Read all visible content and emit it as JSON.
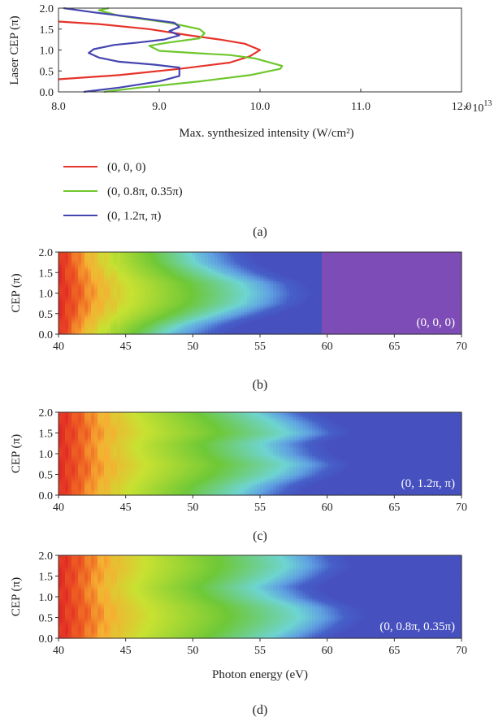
{
  "chart_data": [
    {
      "panel": "(a)",
      "type": "line",
      "xlabel": "Max. synthesized intensity (W/cm²)",
      "ylabel": "Laser CEP (π)",
      "xlim": [
        8.0,
        12.0
      ],
      "ylim": [
        0.0,
        2.0
      ],
      "x_ticks": [
        "8.0",
        "9.0",
        "10.0",
        "11.0",
        "12.0"
      ],
      "x_multiplier": "× 10",
      "x_exponent": "13",
      "y_ticks": [
        "0.0",
        "0.5",
        "1.0",
        "1.5",
        "2.0"
      ],
      "legend_position": "below",
      "series": [
        {
          "name": "(0, 0, 0)",
          "color": "#e5332a",
          "points": [
            [
              8.0,
              0.3
            ],
            [
              8.6,
              0.4
            ],
            [
              9.2,
              0.55
            ],
            [
              9.7,
              0.7
            ],
            [
              9.9,
              0.85
            ],
            [
              10.0,
              1.0
            ],
            [
              9.85,
              1.15
            ],
            [
              9.6,
              1.25
            ],
            [
              9.3,
              1.35
            ],
            [
              8.9,
              1.5
            ],
            [
              8.4,
              1.62
            ],
            [
              8.0,
              1.68
            ]
          ]
        },
        {
          "name": "(0, 0.8π, 0.35π)",
          "color": "#6ec72d",
          "points": [
            [
              8.45,
              0.0
            ],
            [
              8.8,
              0.1
            ],
            [
              9.4,
              0.25
            ],
            [
              9.9,
              0.4
            ],
            [
              10.2,
              0.55
            ],
            [
              10.22,
              0.62
            ],
            [
              9.95,
              0.8
            ],
            [
              9.7,
              0.88
            ],
            [
              9.4,
              0.92
            ],
            [
              9.0,
              0.98
            ],
            [
              8.9,
              1.1
            ],
            [
              9.1,
              1.18
            ],
            [
              9.4,
              1.28
            ],
            [
              9.45,
              1.4
            ],
            [
              9.4,
              1.5
            ],
            [
              9.1,
              1.65
            ],
            [
              8.6,
              1.82
            ],
            [
              8.4,
              1.95
            ],
            [
              8.5,
              2.0
            ]
          ]
        },
        {
          "name": "(0, 1.2π, π)",
          "color": "#4545b0",
          "points": [
            [
              8.25,
              0.0
            ],
            [
              8.6,
              0.1
            ],
            [
              9.0,
              0.25
            ],
            [
              9.2,
              0.38
            ],
            [
              9.2,
              0.58
            ],
            [
              8.95,
              0.65
            ],
            [
              8.6,
              0.72
            ],
            [
              8.4,
              0.82
            ],
            [
              8.3,
              0.93
            ],
            [
              8.35,
              1.02
            ],
            [
              8.55,
              1.12
            ],
            [
              8.8,
              1.18
            ],
            [
              9.05,
              1.25
            ],
            [
              9.2,
              1.35
            ],
            [
              9.1,
              1.45
            ],
            [
              9.2,
              1.55
            ],
            [
              9.15,
              1.65
            ],
            [
              8.75,
              1.78
            ],
            [
              8.35,
              1.9
            ],
            [
              8.05,
              2.0
            ]
          ]
        }
      ]
    },
    {
      "panel": "(b)",
      "type": "heatmap",
      "label": "(0, 0, 0)",
      "ylabel": "CEP (π)",
      "xlim": [
        40,
        70
      ],
      "ylim": [
        0.0,
        2.0
      ],
      "x_ticks": [
        "40",
        "45",
        "50",
        "55",
        "60",
        "65",
        "70"
      ],
      "y_ticks": [
        "0.0",
        "0.5",
        "1.0",
        "1.5",
        "2.0"
      ],
      "cutoff_eV": [
        [
          0.0,
          48.0
        ],
        [
          0.25,
          49.5
        ],
        [
          0.5,
          52.0
        ],
        [
          0.75,
          54.0
        ],
        [
          1.0,
          54.5
        ],
        [
          1.25,
          54.0
        ],
        [
          1.5,
          52.0
        ],
        [
          1.75,
          50.5
        ],
        [
          2.0,
          50.0
        ]
      ],
      "max_extent_eV": 59.5
    },
    {
      "panel": "(c)",
      "type": "heatmap",
      "label": "(0, 1.2π, π)",
      "ylabel": "CEP (π)",
      "xlim": [
        40,
        70
      ],
      "ylim": [
        0.0,
        2.0
      ],
      "x_ticks": [
        "40",
        "45",
        "50",
        "55",
        "60",
        "65",
        "70"
      ],
      "y_ticks": [
        "0.0",
        "0.5",
        "1.0",
        "1.5",
        "2.0"
      ],
      "cutoff_eV": [
        [
          0.0,
          53.5
        ],
        [
          0.25,
          54.5
        ],
        [
          0.5,
          56.5
        ],
        [
          0.75,
          57.5
        ],
        [
          1.0,
          56.0
        ],
        [
          1.25,
          55.5
        ],
        [
          1.5,
          57.5
        ],
        [
          1.75,
          56.5
        ],
        [
          2.0,
          55.0
        ]
      ],
      "max_extent_eV": 70
    },
    {
      "panel": "(d)",
      "type": "heatmap",
      "label": "(0, 0.8π, 0.35π)",
      "xlabel": "Photon energy (eV)",
      "ylabel": "CEP (π)",
      "xlim": [
        40,
        70
      ],
      "ylim": [
        0.0,
        2.0
      ],
      "x_ticks": [
        "40",
        "45",
        "50",
        "55",
        "60",
        "65",
        "70"
      ],
      "y_ticks": [
        "0.0",
        "0.5",
        "1.0",
        "1.5",
        "2.0"
      ],
      "cutoff_eV": [
        [
          0.0,
          56.0
        ],
        [
          0.25,
          57.5
        ],
        [
          0.5,
          58.5
        ],
        [
          0.75,
          58.0
        ],
        [
          1.0,
          56.0
        ],
        [
          1.25,
          55.0
        ],
        [
          1.5,
          56.5
        ],
        [
          1.75,
          57.5
        ],
        [
          2.0,
          57.0
        ]
      ],
      "max_extent_eV": 70
    }
  ]
}
